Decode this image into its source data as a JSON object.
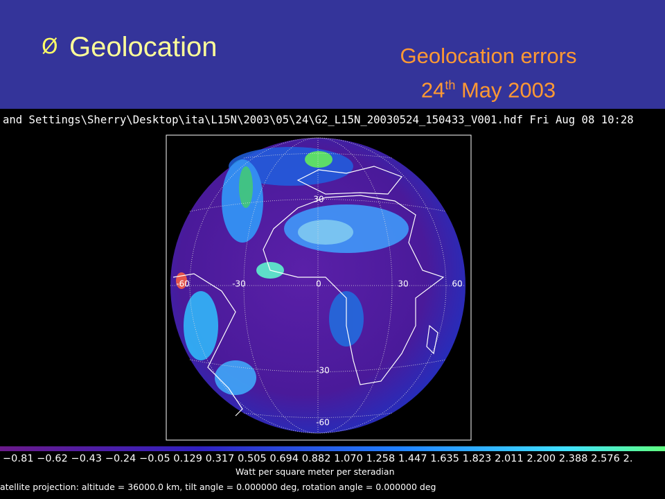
{
  "header": {
    "bullet": "Ø",
    "title": "Geolocation",
    "caption_line1": "Geolocation errors",
    "caption_day": "24",
    "caption_sup": "th",
    "caption_rest": "May 2003"
  },
  "image": {
    "file_line": "and Settings\\Sherry\\Desktop\\ita\\L15N\\2003\\05\\24\\G2_L15N_20030524_150433_V001.hdf Fri Aug 08 10:28",
    "grid_labels": [
      "30",
      "-60",
      "-30",
      "0",
      "30",
      "60",
      "-30",
      "-60"
    ],
    "colorbar_labels": "−0.81 −0.62 −0.43 −0.24 −0.05 0.129 0.317 0.505 0.694 0.882 1.070 1.258 1.447 1.635 1.823 2.011 2.200 2.388 2.576 2.",
    "units": "Watt per square meter per steradian",
    "projection": "atellite projection: altitude = 36000.0 km, tilt angle = 0.000000 deg, rotation angle = 0.000000 deg"
  }
}
